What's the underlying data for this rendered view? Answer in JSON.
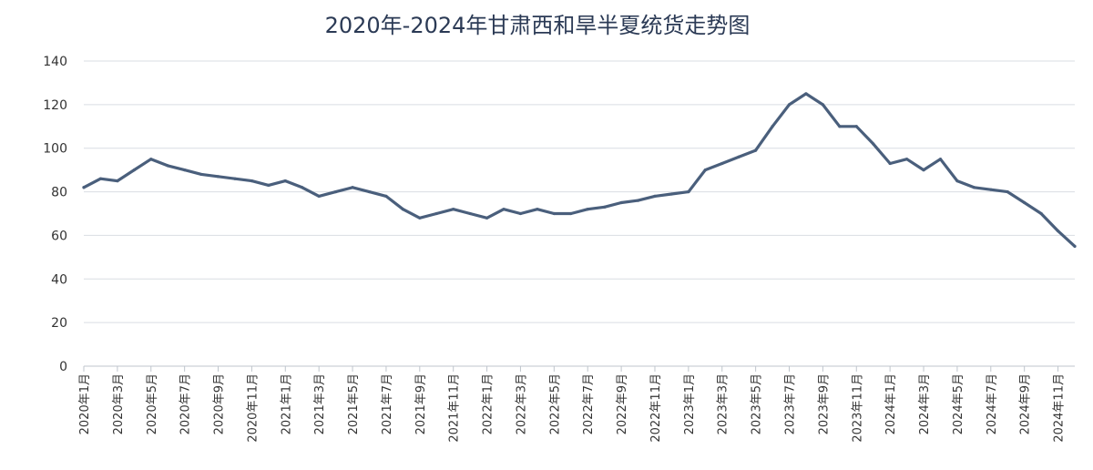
{
  "chart_data": {
    "type": "line",
    "title": "2020年-2024年甘肃西和旱半夏统货走势图",
    "xlabel": "",
    "ylabel": "",
    "ylim": [
      0,
      140
    ],
    "yticks": [
      0,
      20,
      40,
      60,
      80,
      100,
      120,
      140
    ],
    "grid": true,
    "legend": "none",
    "line_color": "#4a5f7c",
    "categories": [
      "2020年1月",
      "2020年3月",
      "2020年5月",
      "2020年7月",
      "2020年9月",
      "2020年11月",
      "2021年1月",
      "2021年3月",
      "2021年5月",
      "2021年7月",
      "2021年9月",
      "2021年11月",
      "2022年1月",
      "2022年3月",
      "2022年5月",
      "2022年7月",
      "2022年9月",
      "2022年11月",
      "2023年1月",
      "2023年3月",
      "2023年5月",
      "2023年7月",
      "2023年9月",
      "2023年11月",
      "2024年1月",
      "2024年3月",
      "2024年5月",
      "2024年7月",
      "2024年9月",
      "2024年11月"
    ],
    "series": [
      {
        "x": [
          "2020年1月",
          "2020年2月",
          "2020年3月",
          "2020年4月",
          "2020年5月",
          "2020年6月",
          "2020年7月",
          "2020年8月",
          "2020年9月",
          "2020年10月",
          "2020年11月",
          "2020年12月",
          "2021年1月",
          "2021年2月",
          "2021年3月",
          "2021年4月",
          "2021年5月",
          "2021年6月",
          "2021年7月",
          "2021年8月",
          "2021年9月",
          "2021年10月",
          "2021年11月",
          "2021年12月",
          "2022年1月",
          "2022年2月",
          "2022年3月",
          "2022年4月",
          "2022年5月",
          "2022年6月",
          "2022年7月",
          "2022年8月",
          "2022年9月",
          "2022年10月",
          "2022年11月",
          "2022年12月",
          "2023年1月",
          "2023年2月",
          "2023年3月",
          "2023年4月",
          "2023年5月",
          "2023年6月",
          "2023年7月",
          "2023年8月",
          "2023年9月",
          "2023年10月",
          "2023年11月",
          "2023年12月",
          "2024年1月",
          "2024年2月",
          "2024年3月",
          "2024年4月",
          "2024年5月",
          "2024年6月",
          "2024年7月",
          "2024年8月",
          "2024年9月",
          "2024年10月",
          "2024年11月",
          "2024年12月"
        ],
        "values": [
          82,
          86,
          85,
          90,
          95,
          92,
          90,
          88,
          87,
          86,
          85,
          83,
          85,
          82,
          78,
          80,
          82,
          80,
          78,
          72,
          68,
          70,
          72,
          70,
          68,
          72,
          70,
          72,
          70,
          70,
          72,
          73,
          75,
          76,
          78,
          79,
          80,
          90,
          93,
          96,
          99,
          110,
          120,
          125,
          120,
          110,
          110,
          102,
          93,
          95,
          90,
          95,
          85,
          82,
          81,
          80,
          75,
          70,
          62,
          55
        ]
      }
    ]
  }
}
